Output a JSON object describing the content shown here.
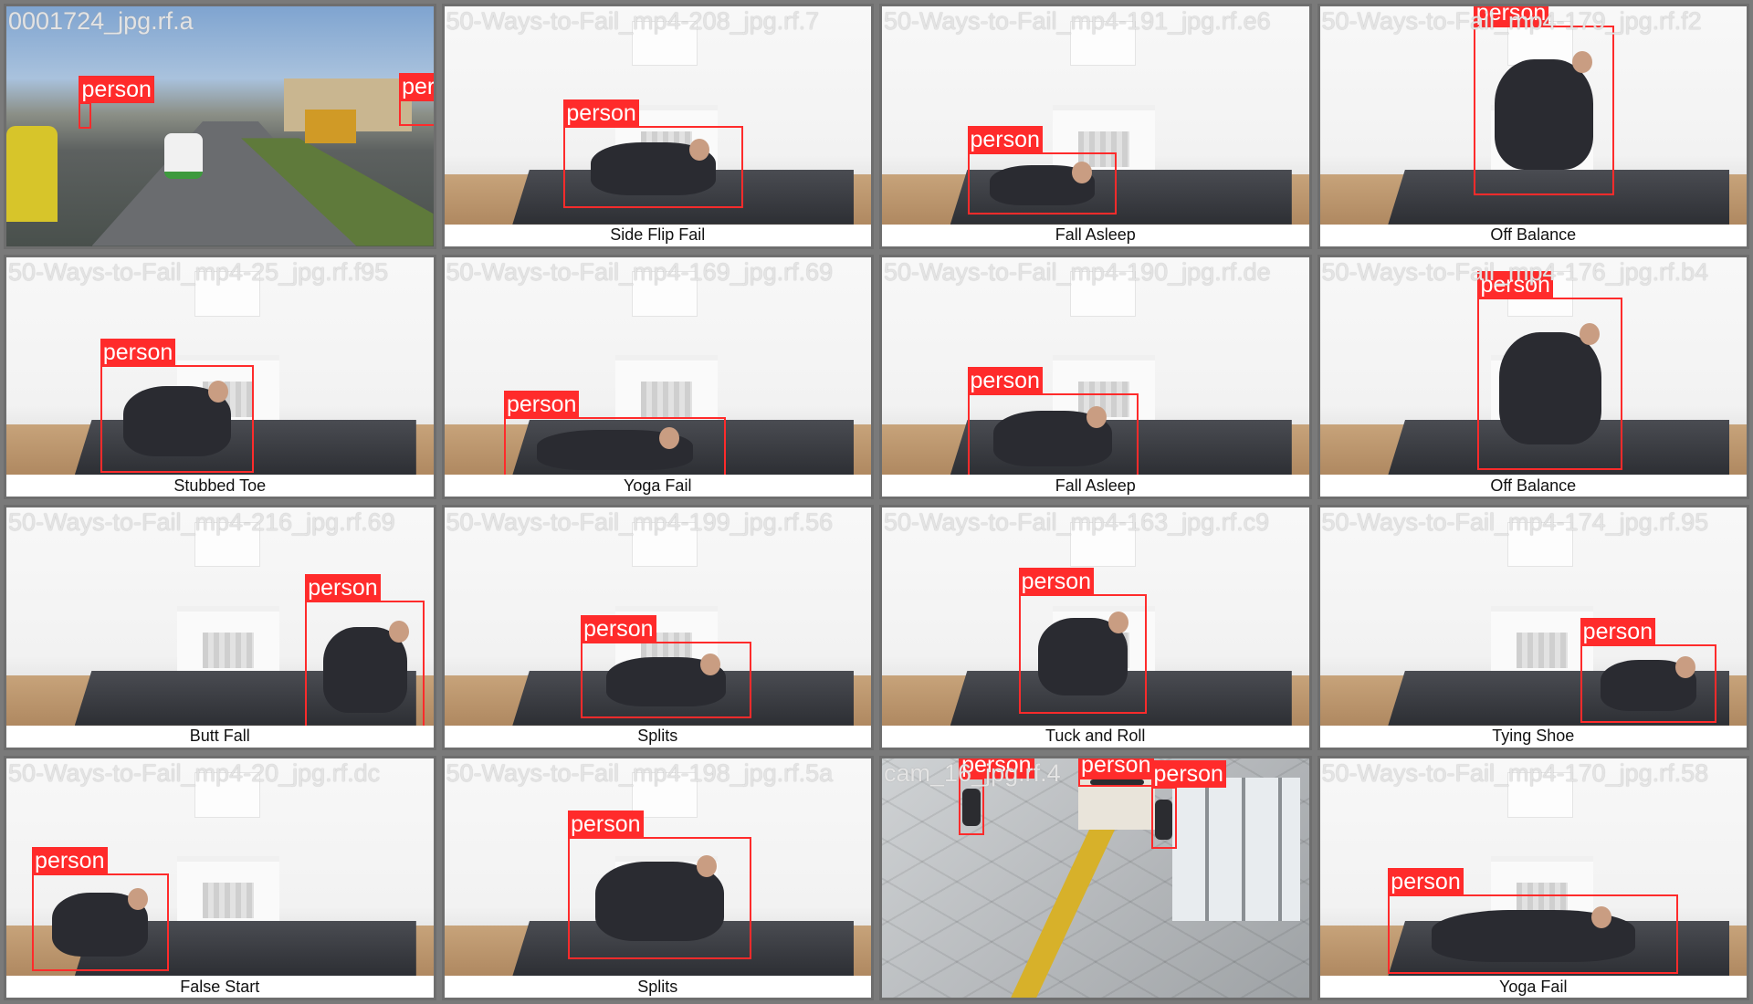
{
  "colors": {
    "box": "#ff2b2b",
    "caption_bg": "#ffffff",
    "grid_bg": "#7a7a7a"
  },
  "tiles": [
    {
      "type": "street",
      "filename": "0001724_jpg.rf.a",
      "caption": "",
      "boxes": [
        {
          "label": "person"
        },
        {
          "label": "person"
        }
      ]
    },
    {
      "type": "room",
      "filename": "50-Ways-to-Fail_mp4-208_jpg.rf.7",
      "caption": "Side Flip Fail",
      "boxes": [
        {
          "label": "person"
        }
      ]
    },
    {
      "type": "room",
      "filename": "50-Ways-to-Fail_mp4-191_jpg.rf.e6",
      "caption": "Fall Asleep",
      "boxes": [
        {
          "label": "person"
        }
      ]
    },
    {
      "type": "room",
      "filename": "50-Ways-to-Fail_mp4-179_jpg.rf.f2",
      "caption": "Off Balance",
      "boxes": [
        {
          "label": "person"
        }
      ]
    },
    {
      "type": "room",
      "filename": "50-Ways-to-Fail_mp4-25_jpg.rf.f95",
      "caption": "Stubbed Toe",
      "boxes": [
        {
          "label": "person"
        }
      ]
    },
    {
      "type": "room",
      "filename": "50-Ways-to-Fail_mp4-169_jpg.rf.69",
      "caption": "Yoga Fail",
      "boxes": [
        {
          "label": "person"
        }
      ]
    },
    {
      "type": "room",
      "filename": "50-Ways-to-Fail_mp4-190_jpg.rf.de",
      "caption": "Fall Asleep",
      "boxes": [
        {
          "label": "person"
        }
      ]
    },
    {
      "type": "room",
      "filename": "50-Ways-to-Fail_mp4-176_jpg.rf.b4",
      "caption": "Off Balance",
      "boxes": [
        {
          "label": "person"
        }
      ]
    },
    {
      "type": "room",
      "filename": "50-Ways-to-Fail_mp4-216_jpg.rf.69",
      "caption": "Butt Fall",
      "boxes": [
        {
          "label": "person"
        }
      ]
    },
    {
      "type": "room",
      "filename": "50-Ways-to-Fail_mp4-199_jpg.rf.56",
      "caption": "Splits",
      "boxes": [
        {
          "label": "person"
        }
      ]
    },
    {
      "type": "room",
      "filename": "50-Ways-to-Fail_mp4-163_jpg.rf.c9",
      "caption": "Tuck and Roll",
      "boxes": [
        {
          "label": "person"
        }
      ]
    },
    {
      "type": "room",
      "filename": "50-Ways-to-Fail_mp4-174_jpg.rf.95",
      "caption": "Tying Shoe",
      "boxes": [
        {
          "label": "person"
        }
      ]
    },
    {
      "type": "room",
      "filename": "50-Ways-to-Fail_mp4-20_jpg.rf.dc",
      "caption": "False Start",
      "boxes": [
        {
          "label": "person"
        }
      ]
    },
    {
      "type": "room",
      "filename": "50-Ways-to-Fail_mp4-198_jpg.rf.5a",
      "caption": "Splits",
      "boxes": [
        {
          "label": "person"
        }
      ]
    },
    {
      "type": "cctv",
      "filename": "cam_16_jpg.rf.4",
      "caption": "",
      "boxes": [
        {
          "label": "person"
        },
        {
          "label": "person"
        },
        {
          "label": "person"
        }
      ]
    },
    {
      "type": "room",
      "filename": "50-Ways-to-Fail_mp4-170_jpg.rf.58",
      "caption": "Yoga Fail",
      "boxes": [
        {
          "label": "person"
        }
      ]
    }
  ]
}
